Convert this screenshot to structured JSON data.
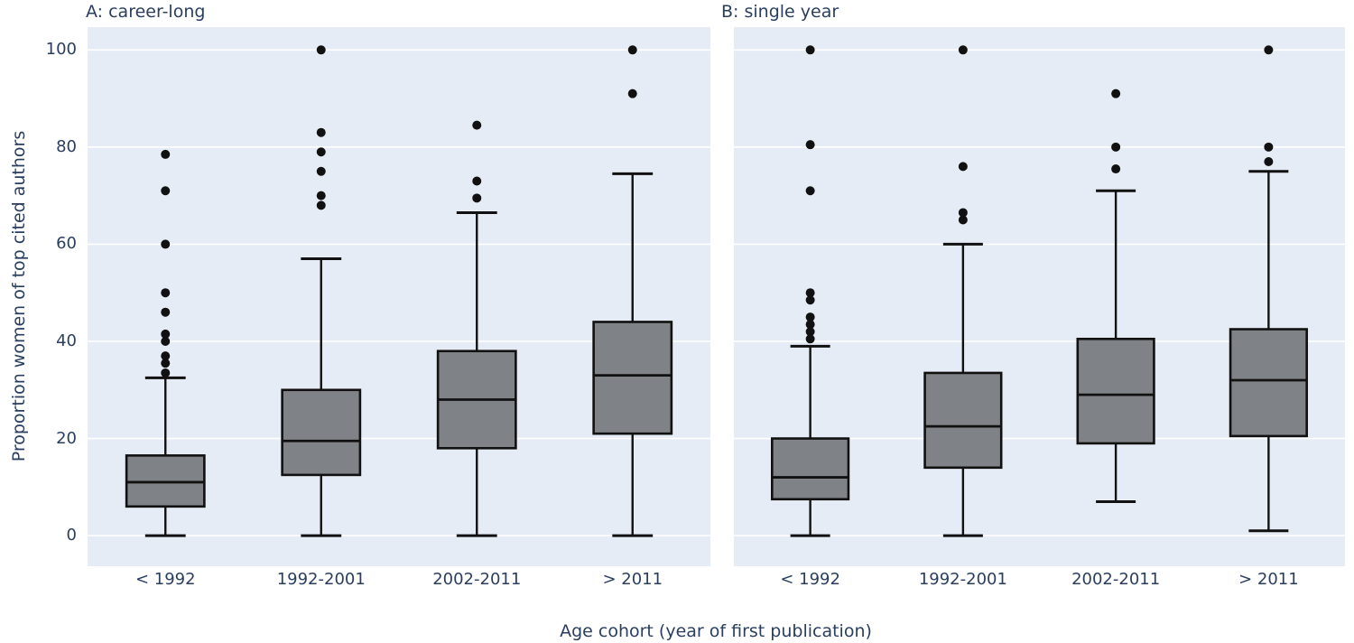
{
  "figure": {
    "xlabel": "Age cohort (year of first publication)",
    "ylabel": "Proportion women of top cited authors",
    "colors": {
      "text": "#2a3f5f",
      "plot_bg": "#e6ecf5",
      "grid": "#ffffff",
      "box_fill": "#7f8287",
      "box_line": "#111111"
    }
  },
  "chart_data": [
    {
      "type": "box",
      "title": "A: career-long",
      "categories": [
        "< 1992",
        "1992-2001",
        "2002-2011",
        "> 2011"
      ],
      "yticks": [
        0,
        20,
        40,
        60,
        80,
        100
      ],
      "ylim": [
        -6.3,
        104.7
      ],
      "ylabel": "Proportion women of top cited authors",
      "boxes": [
        {
          "category": "< 1992",
          "low": 0,
          "q1": 6,
          "median": 11,
          "q3": 16.5,
          "high": 32.5,
          "outliers": [
            33.5,
            35.5,
            37,
            40,
            41.5,
            46,
            50,
            60,
            71,
            78.5
          ]
        },
        {
          "category": "1992-2001",
          "low": 0,
          "q1": 12.5,
          "median": 19.5,
          "q3": 30,
          "high": 57,
          "outliers": [
            68,
            70,
            75,
            79,
            83,
            100
          ]
        },
        {
          "category": "2002-2011",
          "low": 0,
          "q1": 18,
          "median": 28,
          "q3": 38,
          "high": 66.5,
          "outliers": [
            69.5,
            73,
            84.5
          ]
        },
        {
          "category": "> 2011",
          "low": 0,
          "q1": 21,
          "median": 33,
          "q3": 44,
          "high": 74.5,
          "outliers": [
            91,
            100
          ]
        }
      ]
    },
    {
      "type": "box",
      "title": "B: single year",
      "categories": [
        "< 1992",
        "1992-2001",
        "2002-2011",
        "> 2011"
      ],
      "yticks": [
        0,
        20,
        40,
        60,
        80,
        100
      ],
      "ylim": [
        -6.3,
        104.7
      ],
      "ylabel": "Proportion women of top cited authors",
      "boxes": [
        {
          "category": "< 1992",
          "low": 0,
          "q1": 7.5,
          "median": 12,
          "q3": 20,
          "high": 39,
          "outliers": [
            40.5,
            42,
            43.5,
            45,
            48.5,
            50,
            71,
            80.5,
            100
          ]
        },
        {
          "category": "1992-2001",
          "low": 0,
          "q1": 14,
          "median": 22.5,
          "q3": 33.5,
          "high": 60,
          "outliers": [
            65,
            66.5,
            76,
            100
          ]
        },
        {
          "category": "2002-2011",
          "low": 7,
          "q1": 19,
          "median": 29,
          "q3": 40.5,
          "high": 71,
          "outliers": [
            75.5,
            80,
            91
          ]
        },
        {
          "category": "> 2011",
          "low": 1,
          "q1": 20.5,
          "median": 32,
          "q3": 42.5,
          "high": 75,
          "outliers": [
            77,
            80,
            100
          ]
        }
      ]
    }
  ]
}
